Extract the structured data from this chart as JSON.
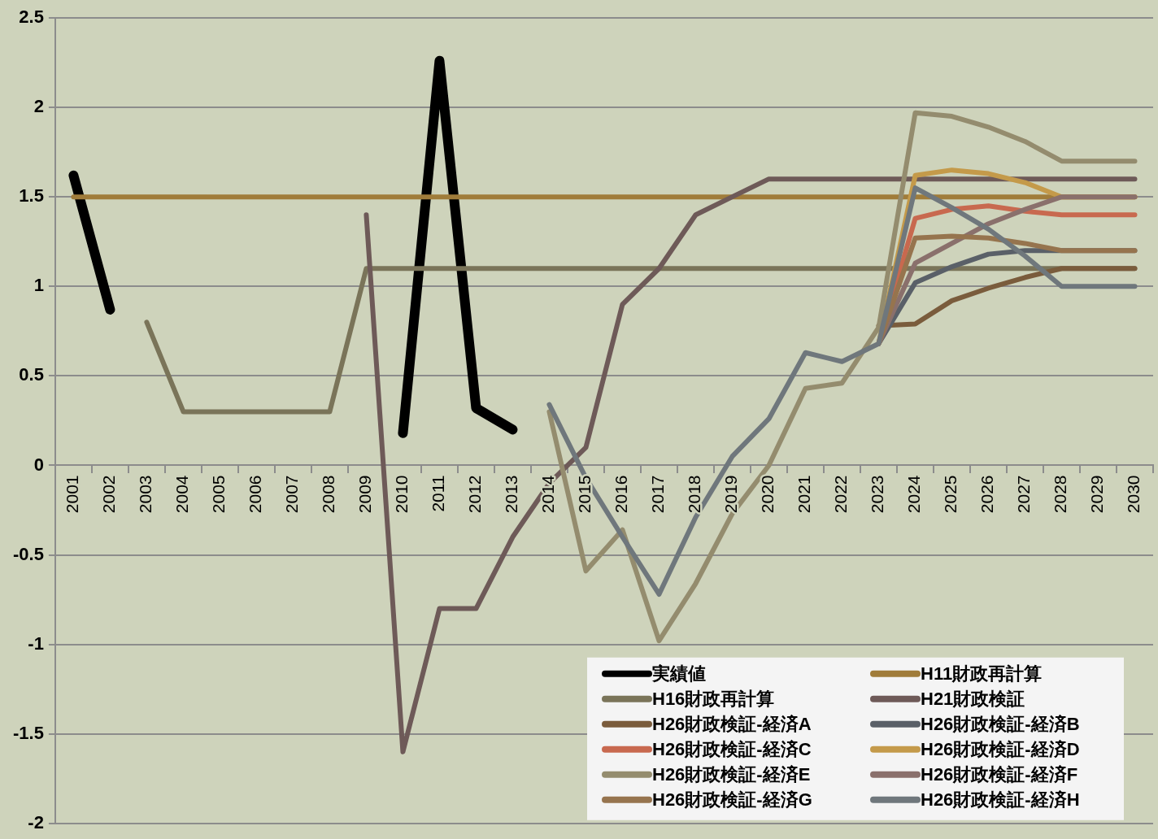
{
  "chart_data": {
    "type": "line",
    "categories": [
      "2001",
      "2002",
      "2003",
      "2004",
      "2005",
      "2006",
      "2007",
      "2008",
      "2009",
      "2010",
      "2011",
      "2012",
      "2013",
      "2014",
      "2015",
      "2016",
      "2017",
      "2018",
      "2019",
      "2020",
      "2021",
      "2022",
      "2023",
      "2024",
      "2025",
      "2026",
      "2027",
      "2028",
      "2029",
      "2030"
    ],
    "ylim": [
      -2,
      2.5
    ],
    "yticks": [
      -2,
      -1.5,
      -1,
      -0.5,
      0,
      0.5,
      1,
      1.5,
      2,
      2.5
    ],
    "grid": "y",
    "legend": "bottom right",
    "series": [
      {
        "name": "実績値",
        "color": "#000000",
        "values": [
          1.62,
          0.87,
          null,
          null,
          null,
          null,
          null,
          null,
          null,
          0.18,
          2.26,
          0.32,
          0.2,
          null,
          null,
          null,
          null,
          null,
          null,
          null,
          null,
          null,
          null,
          null,
          null,
          null,
          null,
          null,
          null,
          null
        ]
      },
      {
        "name": "H11財政再計算",
        "color": "#a07c3a",
        "values": [
          1.5,
          1.5,
          1.5,
          1.5,
          1.5,
          1.5,
          1.5,
          1.5,
          1.5,
          1.5,
          1.5,
          1.5,
          1.5,
          1.5,
          1.5,
          1.5,
          1.5,
          1.5,
          1.5,
          1.5,
          1.5,
          1.5,
          1.5,
          1.5,
          1.5,
          1.5,
          1.5,
          1.5,
          1.5,
          1.5
        ]
      },
      {
        "name": "H16財政再計算",
        "color": "#7a7459",
        "values": [
          null,
          null,
          0.8,
          0.3,
          0.3,
          0.3,
          0.3,
          0.3,
          1.1,
          1.1,
          1.1,
          1.1,
          1.1,
          1.1,
          1.1,
          1.1,
          1.1,
          1.1,
          1.1,
          1.1,
          1.1,
          1.1,
          1.1,
          1.1,
          1.1,
          1.1,
          1.1,
          1.1,
          1.1,
          1.1
        ]
      },
      {
        "name": "H21財政検証",
        "color": "#6e5a58",
        "values": [
          null,
          null,
          null,
          null,
          null,
          null,
          null,
          null,
          1.4,
          -1.6,
          -0.8,
          -0.8,
          -0.4,
          -0.1,
          0.1,
          0.9,
          1.1,
          1.4,
          1.5,
          1.6,
          1.6,
          1.6,
          1.6,
          1.6,
          1.6,
          1.6,
          1.6,
          1.6,
          1.6,
          1.6
        ]
      },
      {
        "name": "H26財政検証-経済A",
        "color": "#7a5c3c",
        "values": [
          null,
          null,
          null,
          null,
          null,
          null,
          null,
          null,
          null,
          null,
          null,
          null,
          null,
          null,
          null,
          null,
          null,
          null,
          null,
          null,
          null,
          null,
          0.78,
          0.79,
          0.92,
          0.99,
          1.05,
          1.1,
          1.1,
          1.1
        ]
      },
      {
        "name": "H26財政検証-経済B",
        "color": "#5a6068",
        "values": [
          null,
          null,
          null,
          null,
          null,
          null,
          null,
          null,
          null,
          null,
          null,
          null,
          null,
          null,
          null,
          null,
          null,
          null,
          null,
          null,
          null,
          null,
          0.68,
          1.02,
          1.11,
          1.18,
          1.2,
          1.2,
          1.2,
          1.2
        ]
      },
      {
        "name": "H26財政検証-経済C",
        "color": "#c8694f",
        "values": [
          null,
          null,
          null,
          null,
          null,
          null,
          null,
          null,
          null,
          null,
          null,
          null,
          null,
          null,
          null,
          null,
          null,
          null,
          null,
          null,
          null,
          null,
          0.68,
          1.38,
          1.43,
          1.45,
          1.42,
          1.4,
          1.4,
          1.4
        ]
      },
      {
        "name": "H26財政検証-経済D",
        "color": "#c49a4a",
        "values": [
          null,
          null,
          null,
          null,
          null,
          null,
          null,
          null,
          null,
          null,
          null,
          null,
          null,
          null,
          null,
          null,
          null,
          null,
          null,
          null,
          null,
          null,
          0.68,
          1.62,
          1.65,
          1.63,
          1.58,
          1.5,
          1.5,
          1.5
        ]
      },
      {
        "name": "H26財政検証-経済E",
        "color": "#948c6e",
        "values": [
          null,
          null,
          null,
          null,
          null,
          null,
          null,
          null,
          null,
          null,
          null,
          null,
          null,
          0.3,
          -0.59,
          -0.36,
          -0.98,
          -0.66,
          -0.27,
          0.0,
          0.43,
          0.46,
          0.77,
          1.97,
          1.95,
          1.89,
          1.81,
          1.7,
          1.7,
          1.7
        ]
      },
      {
        "name": "H26財政検証-経済F",
        "color": "#8a706c",
        "values": [
          null,
          null,
          null,
          null,
          null,
          null,
          null,
          null,
          null,
          null,
          null,
          null,
          null,
          null,
          null,
          null,
          null,
          null,
          null,
          null,
          null,
          null,
          0.68,
          1.13,
          1.24,
          1.35,
          1.43,
          1.5,
          1.5,
          1.5
        ]
      },
      {
        "name": "H26財政検証-経済G",
        "color": "#96744e",
        "values": [
          null,
          null,
          null,
          null,
          null,
          null,
          null,
          null,
          null,
          null,
          null,
          null,
          null,
          null,
          null,
          null,
          null,
          null,
          null,
          null,
          null,
          null,
          0.68,
          1.27,
          1.28,
          1.27,
          1.24,
          1.2,
          1.2,
          1.2
        ]
      },
      {
        "name": "H26財政検証-経済H",
        "color": "#6f777c",
        "values": [
          null,
          null,
          null,
          null,
          null,
          null,
          null,
          null,
          null,
          null,
          null,
          null,
          null,
          0.34,
          -0.07,
          -0.4,
          -0.72,
          -0.29,
          0.05,
          0.26,
          0.63,
          0.58,
          0.68,
          1.55,
          1.44,
          1.32,
          1.17,
          1.0,
          1.0,
          1.0
        ]
      }
    ]
  }
}
